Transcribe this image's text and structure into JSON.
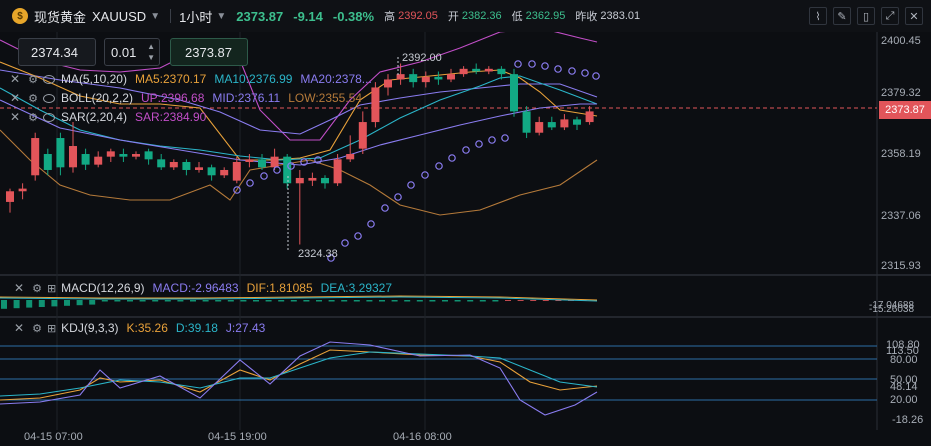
{
  "header": {
    "logo_glyph": "$",
    "symbol_name": "现货黄金",
    "symbol_code": "XAUUSD",
    "timeframe": "1小时",
    "last_price": "2373.87",
    "change": "-9.14",
    "change_pct": "-0.38%",
    "high_label": "高",
    "high_value": "2392.05",
    "open_label": "开",
    "open_value": "2382.36",
    "low_label": "低",
    "low_value": "2362.95",
    "prev_close_label": "昨收",
    "prev_close_value": "2383.01",
    "buttons": [
      "trend-icon",
      "draw-icon",
      "screenshot-icon",
      "expand-icon",
      "close-icon"
    ]
  },
  "order": {
    "sell_price": "2374.34",
    "lot": "0.01",
    "buy_price": "2373.87"
  },
  "indicators": {
    "ma": {
      "name": "MA(5,10,20)",
      "ma5": "MA5:2370.17",
      "ma10": "MA10:2376.99",
      "ma20": "MA20:2378..."
    },
    "boll": {
      "name": "BOLL(20,2,2)",
      "up": "UP:2396.68",
      "mid": "MID:2376.11",
      "low": "LOW:2355.54"
    },
    "sar": {
      "name": "SAR(2,20,4)",
      "sar": "SAR:2384.90"
    },
    "macd": {
      "name": "MACD(12,26,9)",
      "macd": "MACD:-2.96483",
      "dif": "DIF:1.81085",
      "dea": "DEA:3.29327"
    },
    "kdj": {
      "name": "KDJ(9,3,3)",
      "k": "K:35.26",
      "d": "D:39.18",
      "j": "J:27.43"
    }
  },
  "axis": {
    "price_labels": [
      "2400.45",
      "2379.32",
      "2358.19",
      "2337.06",
      "2315.93"
    ],
    "current_price_tag": "2373.87",
    "macd_labels": [
      "-17.04688",
      "-15.26038"
    ],
    "kdj_labels": [
      "108.80",
      "113.50",
      "80.00",
      "50.00",
      "48.14",
      "20.00",
      "-18.26"
    ],
    "time_labels": [
      "04-15 07:00",
      "04-15 19:00",
      "04-16 08:00"
    ]
  },
  "annotations": {
    "high_mark": "2392.00",
    "low_mark": "2324.38"
  },
  "colors": {
    "up": "#e2555a",
    "down": "#12a984",
    "ma5": "#e8a13a",
    "ma10": "#2bb5c9",
    "ma20": "#8a7cf0",
    "boll": "#c14ec7",
    "sar": "#8a7cf0"
  }
}
